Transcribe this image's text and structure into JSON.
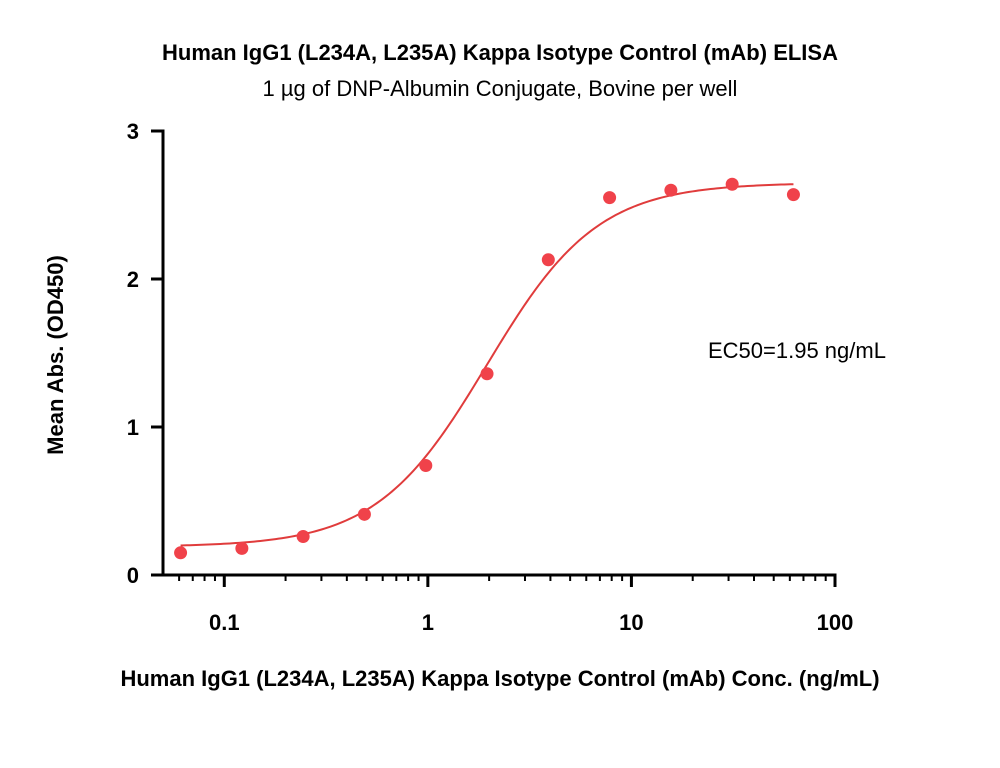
{
  "chart_data": {
    "type": "scatter",
    "title": "Human IgG1 (L234A, L235A) Kappa Isotype Control (mAb) ELISA",
    "subtitle": "1 µg of DNP-Albumin Conjugate, Bovine per well",
    "xlabel": "Human IgG1 (L234A, L235A) Kappa Isotype Control (mAb) Conc. (ng/mL)",
    "ylabel": "Mean Abs. (OD450)",
    "xscale": "log",
    "xlim": [
      0.05,
      100
    ],
    "ylim": [
      0,
      3
    ],
    "xticks": [
      0.1,
      1,
      10,
      100
    ],
    "xtick_labels": [
      "0.1",
      "1",
      "10",
      "100"
    ],
    "yticks": [
      0,
      1,
      2,
      3
    ],
    "ytick_labels": [
      "0",
      "1",
      "2",
      "3"
    ],
    "grid": false,
    "series": [
      {
        "color": "#f0424a",
        "x": [
          0.061,
          0.122,
          0.244,
          0.488,
          0.977,
          1.953,
          3.906,
          7.813,
          15.625,
          31.25,
          62.5
        ],
        "y": [
          0.15,
          0.18,
          0.26,
          0.41,
          0.74,
          1.36,
          2.13,
          2.55,
          2.6,
          2.64,
          2.57
        ]
      }
    ],
    "fit": {
      "type": "4PL",
      "bottom": 0.19,
      "top": 2.65,
      "ec50": 1.95,
      "hill": 1.6,
      "color": "#e03c3c"
    },
    "annotations": [
      {
        "text": "EC50=1.95 ng/mL"
      }
    ]
  }
}
